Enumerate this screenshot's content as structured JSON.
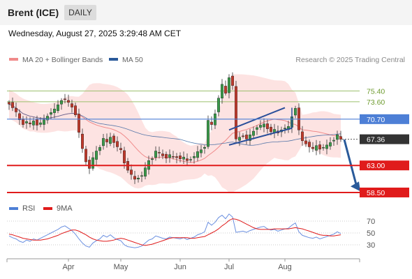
{
  "header": {
    "title": "Brent (ICE)",
    "timeframe": "DAILY",
    "datetime": "Wednesday, August 27, 2025 3:29:48 AM CET"
  },
  "legend": {
    "items": [
      {
        "label": "MA 20 + Bollinger Bands",
        "color": "#f08a8a"
      },
      {
        "label": "MA 50",
        "color": "#2a5a9a"
      }
    ],
    "copyright": "Research © 2025 Trading Central"
  },
  "chart_data": [
    {
      "type": "candlestick",
      "title": "",
      "y_range": [
        57.8,
        79.5
      ],
      "x_tick_labels": [
        "Apr",
        "May",
        "Jun",
        "Jul",
        "Aug"
      ],
      "levels": [
        {
          "label": "75.40",
          "value": 75.4,
          "kind": "line",
          "color": "#9bc06b"
        },
        {
          "label": "73.60",
          "value": 73.6,
          "kind": "line",
          "color": "#9bc06b"
        },
        {
          "label": "70.70",
          "value": 70.7,
          "kind": "tag",
          "color": "#4d7fd6"
        },
        {
          "label": "67.36",
          "value": 67.36,
          "kind": "tag",
          "color": "#333333"
        },
        {
          "label": "63.00",
          "value": 63.0,
          "kind": "tag",
          "color": "#e01b1b"
        },
        {
          "label": "58.50",
          "value": 58.5,
          "kind": "tag",
          "color": "#e01b1b"
        }
      ],
      "close_series": [
        73.2,
        72.6,
        71.9,
        70.6,
        69.8,
        70.3,
        69.9,
        70.4,
        69.7,
        70.1,
        70.6,
        71.2,
        71.8,
        72.4,
        73.1,
        73.8,
        74.0,
        73.5,
        72.7,
        71.4,
        68.5,
        65.8,
        63.6,
        62.5,
        64.3,
        65.4,
        66.0,
        67.5,
        66.9,
        67.7,
        66.8,
        66.1,
        65.6,
        63.4,
        62.2,
        61.5,
        60.7,
        60.9,
        61.3,
        62.6,
        63.8,
        64.1,
        65.4,
        65.1,
        64.6,
        64.2,
        64.8,
        64.5,
        64.3,
        64.1,
        64.4,
        63.8,
        64.0,
        64.5,
        65.3,
        65.6,
        66.0,
        70.5,
        69.8,
        71.6,
        74.2,
        76.5,
        75.0,
        77.6,
        76.3,
        67.4,
        67.7,
        67.9,
        67.4,
        68.1,
        68.7,
        69.3,
        69.7,
        69.9,
        69.1,
        68.6,
        69.0,
        68.4,
        68.9,
        69.2,
        69.5,
        71.1,
        72.5,
        68.9,
        67.1,
        66.6,
        66.1,
        65.8,
        66.3,
        65.7,
        66.0,
        66.4,
        66.8,
        67.2,
        68.1,
        67.36
      ],
      "ma50_range": "68.2 to 74.4",
      "bollinger": "upper/lower bands around MA 20"
    },
    {
      "type": "line",
      "title": "",
      "legend": [
        "RSI",
        "9MA"
      ],
      "y_ticks": [
        30,
        50,
        70
      ],
      "rsi_series": [
        45,
        42,
        40,
        36,
        34,
        38,
        36,
        40,
        38,
        41,
        44,
        47,
        50,
        53,
        56,
        60,
        62,
        58,
        54,
        48,
        40,
        33,
        28,
        26,
        33,
        37,
        40,
        46,
        43,
        47,
        42,
        39,
        37,
        30,
        27,
        26,
        25,
        26,
        28,
        33,
        38,
        40,
        45,
        43,
        41,
        40,
        43,
        42,
        41,
        40,
        42,
        39,
        41,
        43,
        47,
        49,
        52,
        68,
        63,
        68,
        76,
        80,
        74,
        82,
        77,
        51,
        52,
        53,
        51,
        54,
        56,
        58,
        60,
        61,
        57,
        55,
        56,
        53,
        55,
        57,
        58,
        63,
        67,
        52,
        46,
        44,
        42,
        41,
        43,
        40,
        42,
        44,
        46,
        48,
        52,
        49
      ],
      "ma9_series": [
        48,
        47,
        45,
        43,
        41,
        40,
        39,
        38,
        38,
        38,
        39,
        40,
        42,
        44,
        46,
        49,
        51,
        53,
        55,
        55,
        53,
        50,
        47,
        43,
        40,
        38,
        37,
        36,
        36,
        37,
        38,
        40,
        41,
        40,
        38,
        36,
        34,
        32,
        30,
        29,
        30,
        31,
        33,
        35,
        37,
        39,
        41,
        42,
        42,
        42,
        42,
        42,
        41,
        41,
        42,
        43,
        44,
        47,
        50,
        53,
        57,
        62,
        66,
        71,
        74,
        73,
        71,
        68,
        65,
        62,
        59,
        57,
        56,
        56,
        56,
        56,
        57,
        57,
        57,
        57,
        57,
        58,
        59,
        58,
        57,
        55,
        53,
        51,
        49,
        47,
        46,
        46,
        45,
        45,
        46,
        47
      ]
    }
  ]
}
